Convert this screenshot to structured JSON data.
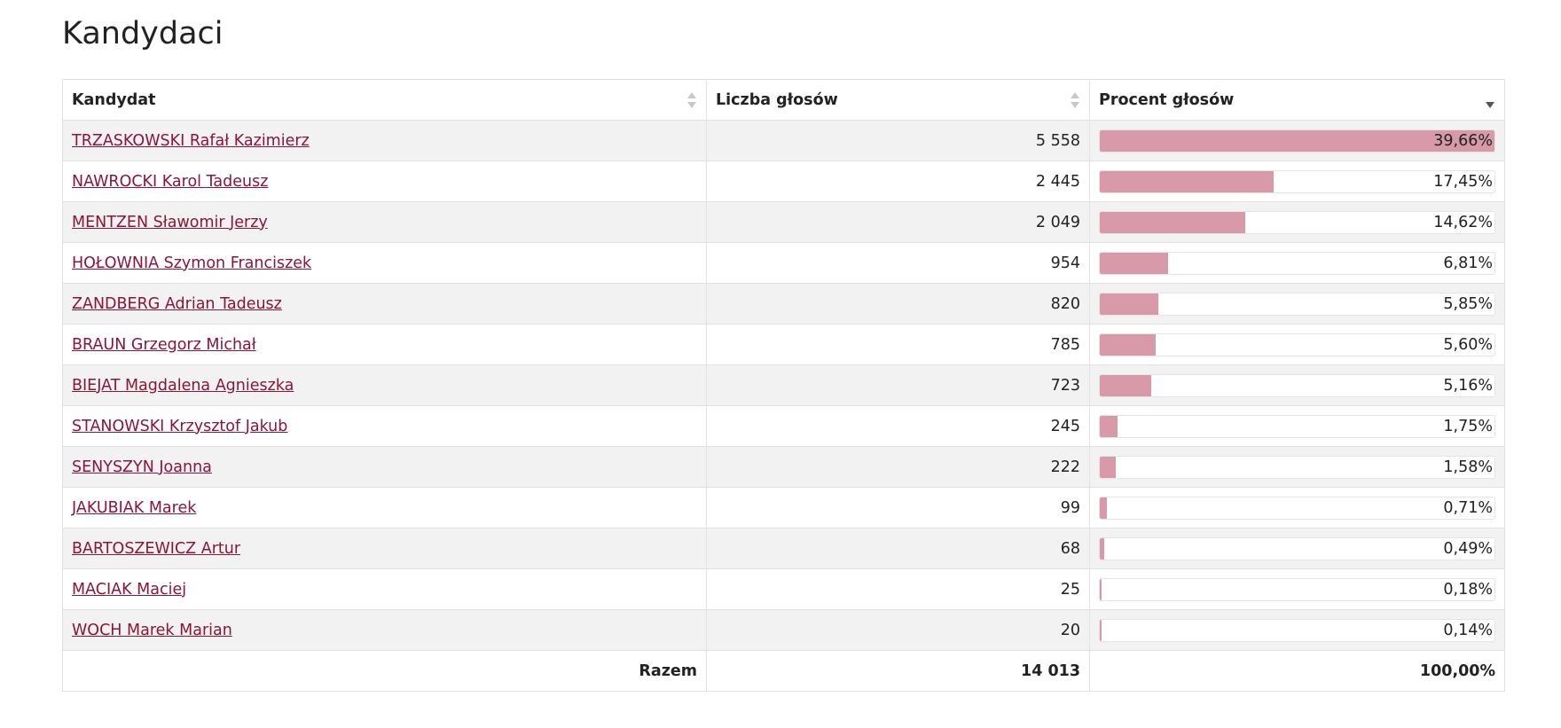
{
  "page": {
    "title": "Kandydaci"
  },
  "table": {
    "columns": [
      {
        "label": "Kandydat",
        "sort": "none"
      },
      {
        "label": "Liczba głosów",
        "sort": "none"
      },
      {
        "label": "Procent głosów",
        "sort": "descending"
      }
    ],
    "rows": [
      {
        "name": "TRZASKOWSKI Rafał Kazimierz",
        "votes": "5 558",
        "percent_label": "39,66%",
        "bar_fill_percent": 100
      },
      {
        "name": "NAWROCKI Karol Tadeusz",
        "votes": "2 445",
        "percent_label": "17,45%",
        "bar_fill_percent": 44
      },
      {
        "name": "MENTZEN Sławomir Jerzy",
        "votes": "2 049",
        "percent_label": "14,62%",
        "bar_fill_percent": 36.9
      },
      {
        "name": "HOŁOWNIA Szymon Franciszek",
        "votes": "954",
        "percent_label": "6,81%",
        "bar_fill_percent": 17.2
      },
      {
        "name": "ZANDBERG Adrian Tadeusz",
        "votes": "820",
        "percent_label": "5,85%",
        "bar_fill_percent": 14.8
      },
      {
        "name": "BRAUN Grzegorz Michał",
        "votes": "785",
        "percent_label": "5,60%",
        "bar_fill_percent": 14.1
      },
      {
        "name": "BIEJAT Magdalena Agnieszka",
        "votes": "723",
        "percent_label": "5,16%",
        "bar_fill_percent": 13
      },
      {
        "name": "STANOWSKI Krzysztof Jakub",
        "votes": "245",
        "percent_label": "1,75%",
        "bar_fill_percent": 4.4
      },
      {
        "name": "SENYSZYN Joanna",
        "votes": "222",
        "percent_label": "1,58%",
        "bar_fill_percent": 4
      },
      {
        "name": "JAKUBIAK Marek",
        "votes": "99",
        "percent_label": "0,71%",
        "bar_fill_percent": 1.8
      },
      {
        "name": "BARTOSZEWICZ Artur",
        "votes": "68",
        "percent_label": "0,49%",
        "bar_fill_percent": 1.2
      },
      {
        "name": "MACIAK Maciej",
        "votes": "25",
        "percent_label": "0,18%",
        "bar_fill_percent": 0.5
      },
      {
        "name": "WOCH Marek Marian",
        "votes": "20",
        "percent_label": "0,14%",
        "bar_fill_percent": 0.35
      }
    ],
    "footer": {
      "label": "Razem",
      "votes": "14 013",
      "percent": "100,00%"
    }
  },
  "colors": {
    "link": "#8a1538",
    "bar_fill": "#d89aa8",
    "row_stripe": "#f2f2f2"
  }
}
